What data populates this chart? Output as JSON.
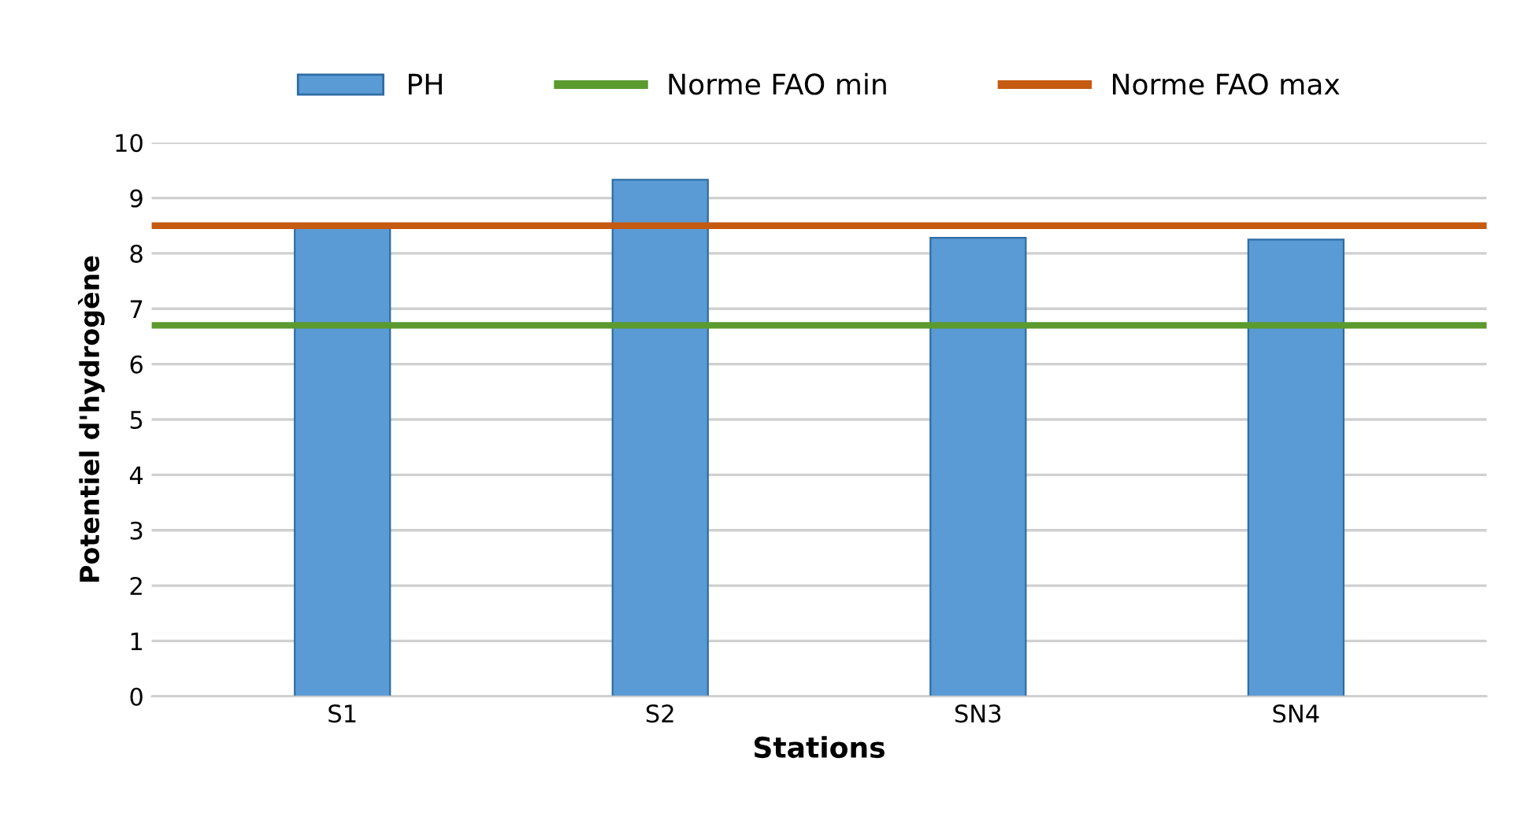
{
  "chart_data": {
    "type": "bar",
    "xlabel": "Stations",
    "ylabel": "Potentiel d'hydrogène",
    "categories": [
      "S1",
      "S2",
      "SN3",
      "SN4"
    ],
    "series": [
      {
        "name": "PH",
        "color": "#5b9bd5",
        "values": [
          8.5,
          9.33,
          8.28,
          8.25
        ]
      }
    ],
    "ylim": [
      0,
      10
    ],
    "yticks": [
      0,
      1,
      2,
      3,
      4,
      5,
      6,
      7,
      8,
      9,
      10
    ],
    "grid": "y",
    "legend": "top",
    "ref_lines": [
      {
        "axis": "y",
        "value": 6.7,
        "label": "Norme FAO min",
        "color": "#5b9a2e"
      },
      {
        "axis": "y",
        "value": 8.5,
        "label": "Norme FAO max",
        "color": "#c55a11"
      }
    ]
  }
}
